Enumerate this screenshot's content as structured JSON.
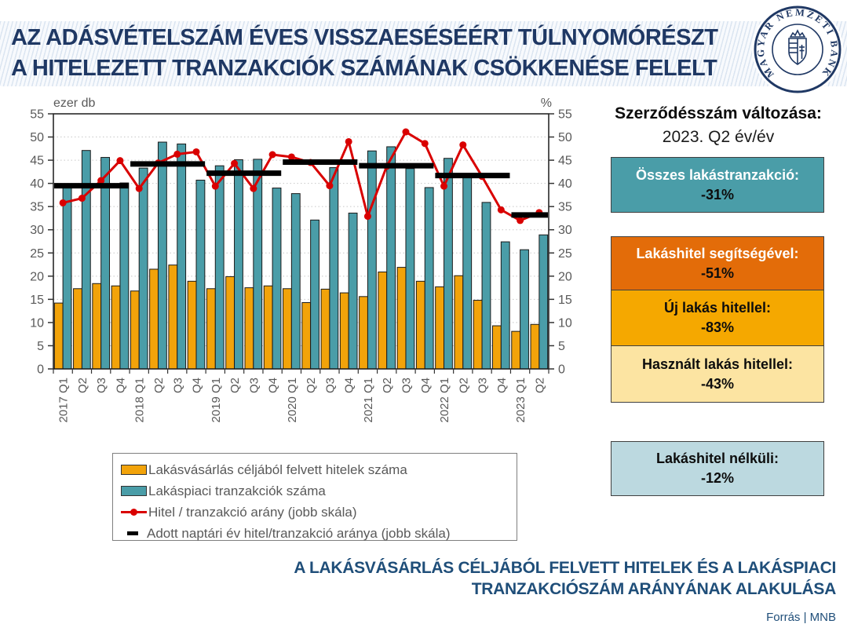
{
  "header": {
    "title_line1": "AZ ADÁSVÉTELSZÁM ÉVES VISSZAESÉSÉÉRT TÚLNYOMÓRÉSZT",
    "title_line2": "A HITELEZETT TRANZAKCIÓK SZÁMÁNAK CSÖKKENÉSE FELELT",
    "logo_text": "MAGYAR NEMZETI BANK"
  },
  "chart_data": {
    "type": "bar",
    "left_axis_label": "ezer db",
    "right_axis_label": "%",
    "ylim": [
      0,
      55
    ],
    "yticks": [
      0,
      5,
      10,
      15,
      20,
      25,
      30,
      35,
      40,
      45,
      50,
      55
    ],
    "grid": "dotted horizontal",
    "categories": [
      "2017 Q1",
      "Q2",
      "Q3",
      "Q4",
      "2018 Q1",
      "Q2",
      "Q3",
      "Q4",
      "2019 Q1",
      "Q2",
      "Q3",
      "Q4",
      "2020 Q1",
      "Q2",
      "Q3",
      "Q4",
      "2021 Q1",
      "Q2",
      "Q3",
      "Q4",
      "2022 Q1",
      "Q2",
      "Q3",
      "Q4",
      "2023 Q1",
      "Q2"
    ],
    "series": [
      {
        "name": "Lakásvásárlás céljából felvett hitelek száma",
        "type": "bar",
        "axis": "left",
        "color": "#F2A30A",
        "values": [
          14.2,
          17.3,
          18.4,
          17.9,
          16.8,
          21.5,
          22.4,
          18.9,
          17.3,
          19.9,
          17.5,
          17.9,
          17.3,
          14.3,
          17.2,
          16.4,
          15.6,
          20.9,
          21.9,
          18.9,
          17.7,
          20.1,
          14.8,
          9.3,
          8.1,
          9.6
        ]
      },
      {
        "name": "Lakáspiaci tranzakciók száma",
        "type": "bar",
        "axis": "left",
        "color": "#4A9DA8",
        "values": [
          39.4,
          47.1,
          45.6,
          40.1,
          43.3,
          48.9,
          48.5,
          40.7,
          43.8,
          45.1,
          45.2,
          39.0,
          37.8,
          32.1,
          43.4,
          33.6,
          47.0,
          47.9,
          43.2,
          39.1,
          45.4,
          41.5,
          35.9,
          27.4,
          25.7,
          28.9
        ]
      },
      {
        "name": "Hitel / tranzakció arány (jobb skála)",
        "type": "line",
        "axis": "right",
        "color": "#D90000",
        "values": [
          35.8,
          36.8,
          40.6,
          44.9,
          38.9,
          44.4,
          46.3,
          46.8,
          39.4,
          44.3,
          38.9,
          46.2,
          45.7,
          44.5,
          39.5,
          49.0,
          32.9,
          43.7,
          51.1,
          48.6,
          39.4,
          48.3,
          41.5,
          34.3,
          32.0,
          33.7
        ]
      },
      {
        "name": "Adott naptári év hitel/tranzakció aránya (jobb skála)",
        "type": "yearly-segments",
        "axis": "right",
        "color": "#000000",
        "segments": [
          {
            "year": "2017",
            "from": 0,
            "to": 3,
            "value": 39.5
          },
          {
            "year": "2018",
            "from": 4,
            "to": 7,
            "value": 44.2
          },
          {
            "year": "2019",
            "from": 8,
            "to": 11,
            "value": 42.2
          },
          {
            "year": "2020",
            "from": 12,
            "to": 15,
            "value": 44.6
          },
          {
            "year": "2021",
            "from": 16,
            "to": 19,
            "value": 43.8
          },
          {
            "year": "2022",
            "from": 20,
            "to": 23,
            "value": 41.7
          },
          {
            "year": "2023",
            "from": 24,
            "to": 25,
            "value": 33.2
          }
        ]
      }
    ]
  },
  "legend": {
    "items": [
      {
        "label": "Lakásvásárlás céljából felvett hitelek száma",
        "swatch": "orange-bar"
      },
      {
        "label": "Lakáspiaci tranzakciók száma",
        "swatch": "teal-bar"
      },
      {
        "label": "Hitel / tranzakció arány (jobb skála)",
        "swatch": "red-line-dot"
      },
      {
        "label": "Adott naptári év hitel/tranzakció aránya (jobb skála)",
        "swatch": "black-dash"
      }
    ]
  },
  "side_panel": {
    "title": "Szerződésszám változása:",
    "subtitle": "2023. Q2 év/év",
    "boxes": [
      {
        "label": "Összes lakástranzakció:",
        "value": "-31%",
        "bg": "#4A9DA8",
        "label_color": "#FFFFFF"
      },
      {
        "label": "Lakáshitel segítségével:",
        "value": "-51%",
        "bg": "#E36C09",
        "label_color": "#FFFFFF"
      },
      {
        "label": "Új lakás hitellel:",
        "value": "-83%",
        "bg": "#F5A800",
        "label_color": "#0d0d0d"
      },
      {
        "label": "Használt lakás hitellel:",
        "value": "-43%",
        "bg": "#FCE4A2",
        "label_color": "#0d0d0d"
      },
      {
        "label": "Lakáshitel nélküli:",
        "value": "-12%",
        "bg": "#BCD9E0",
        "label_color": "#0d0d0d"
      }
    ]
  },
  "footer": {
    "caption_line1": "A LAKÁSVÁSÁRLÁS CÉLJÁBÓL FELVETT HITELEK ÉS A LAKÁSPIACI",
    "caption_line2": "TRANZAKCIÓSZÁM ARÁNYÁNAK ALAKULÁSA",
    "source": "Forrás | MNB"
  },
  "colors": {
    "title_navy": "#1F3864",
    "caption_blue": "#1F4E79",
    "axis_gray": "#595959",
    "header_stripe": "#dbe5f1"
  }
}
